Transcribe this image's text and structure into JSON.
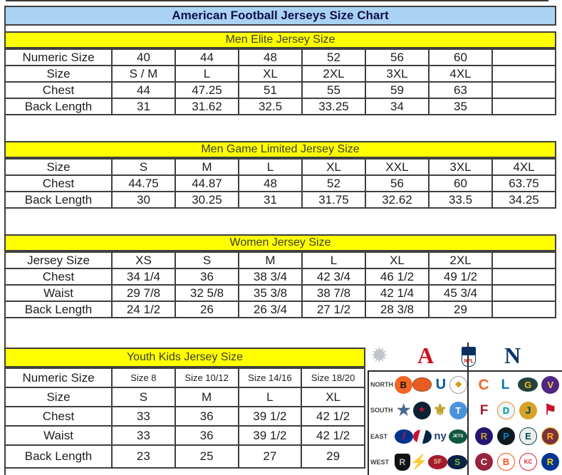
{
  "title": "American Football Jerseys Size Chart",
  "sections": [
    {
      "header": "Men Elite Jersey Size",
      "rows": [
        {
          "label": "Numeric Size",
          "values": [
            "40",
            "44",
            "48",
            "52",
            "56",
            "60",
            ""
          ]
        },
        {
          "label": "Size",
          "values": [
            "S / M",
            "L",
            "XL",
            "2XL",
            "3XL",
            "4XL",
            ""
          ]
        },
        {
          "label": "Chest",
          "values": [
            "44",
            "47.25",
            "51",
            "55",
            "59",
            "63",
            ""
          ]
        },
        {
          "label": "Back Length",
          "values": [
            "31",
            "31.62",
            "32.5",
            "33.25",
            "34",
            "35",
            ""
          ]
        }
      ]
    },
    {
      "header": "Men Game Limited Jersey Size",
      "rows": [
        {
          "label": "Size",
          "values": [
            "S",
            "M",
            "L",
            "XL",
            "XXL",
            "3XL",
            "4XL"
          ]
        },
        {
          "label": "Chest",
          "values": [
            "44.75",
            "44.87",
            "48",
            "52",
            "56",
            "60",
            "63.75"
          ]
        },
        {
          "label": "Back Length",
          "values": [
            "30",
            "30.25",
            "31",
            "31.75",
            "32.62",
            "33.5",
            "34.25"
          ]
        }
      ]
    },
    {
      "header": "Women Jersey Size",
      "rows": [
        {
          "label": "Jersey Size",
          "values": [
            "XS",
            "S",
            "M",
            "L",
            "XL",
            "2XL",
            ""
          ]
        },
        {
          "label": "Chest",
          "values": [
            "34 1/4",
            "36",
            "38 3/4",
            "42 3/4",
            "46 1/2",
            "49 1/2",
            ""
          ]
        },
        {
          "label": "Waist",
          "values": [
            "29 7/8",
            "32 5/8",
            "35 3/8",
            "38 7/8",
            "42 1/4",
            "45 3/4",
            ""
          ]
        },
        {
          "label": "Back Length",
          "values": [
            "24 1/2",
            "26",
            "26 3/4",
            "27 1/2",
            "28 3/8",
            "29",
            ""
          ]
        }
      ]
    },
    {
      "header": "Youth Kids Jersey Size",
      "rows": [
        {
          "label": "Numeric Size",
          "small": true,
          "values": [
            "Size 8",
            "Size 10/12",
            "Size 14/16",
            "Size 18/20"
          ]
        },
        {
          "label": "Size",
          "values": [
            "S",
            "M",
            "L",
            "XL"
          ]
        },
        {
          "label": "Chest",
          "values": [
            "33",
            "36",
            "39 1/2",
            "42 1/2"
          ]
        },
        {
          "label": "Waist",
          "values": [
            "33",
            "36",
            "39 1/2",
            "42 1/2"
          ]
        },
        {
          "label": "Back Length",
          "values": [
            "23",
            "25",
            "27",
            "29"
          ]
        }
      ]
    }
  ],
  "logo_panel": {
    "sunburst_glyph": "✹",
    "afc_mark": "A",
    "shield_text": "NFL",
    "nfc_mark": "N",
    "divisions": [
      {
        "label": "NORTH",
        "afc": [
          {
            "id": "bengals",
            "glyph": "B",
            "shape": "circle",
            "bg": "#f26522",
            "fg": "#161616"
          },
          {
            "id": "browns",
            "glyph": "",
            "shape": "ellipse",
            "bg": "#ea5b24",
            "fg": "#ffffff",
            "bd": "#8a4a17"
          },
          {
            "id": "colts",
            "glyph": "U",
            "shape": "glyph",
            "fg": "#0055a5",
            "fs": 20
          },
          {
            "id": "steelers",
            "glyph": "❖",
            "shape": "circle",
            "bg": "#fdfdfd",
            "fg": "#d4a017",
            "bd": "#9a9da0",
            "fs": 12
          }
        ],
        "nfc": [
          {
            "id": "bears",
            "glyph": "C",
            "shape": "glyph",
            "fg": "#eb6a27",
            "fs": 21
          },
          {
            "id": "lions",
            "glyph": "L",
            "shape": "glyph",
            "fg": "#0076b6",
            "fs": 19
          },
          {
            "id": "packers",
            "glyph": "G",
            "shape": "ellipse",
            "bg": "#24423c",
            "fg": "#ffb612"
          },
          {
            "id": "vikings",
            "glyph": "V",
            "shape": "circle",
            "bg": "#4f2683",
            "fg": "#ffc62f"
          }
        ]
      },
      {
        "label": "SOUTH",
        "afc": [
          {
            "id": "cowboys",
            "glyph": "★",
            "shape": "glyph",
            "fg": "#49698f",
            "fs": 22
          },
          {
            "id": "texans",
            "glyph": "★",
            "shape": "circle",
            "bg": "#0b2231",
            "fg": "#c41230",
            "fs": 10
          },
          {
            "id": "saints",
            "glyph": "⚜",
            "shape": "glyph",
            "fg": "#bfa024",
            "fs": 22
          },
          {
            "id": "titans",
            "glyph": "T",
            "shape": "circle",
            "bg": "#4b92db",
            "fg": "#ffffff"
          }
        ],
        "nfc": [
          {
            "id": "falcons",
            "glyph": "F",
            "shape": "glyph",
            "fg": "#a71930",
            "fs": 19
          },
          {
            "id": "dolphins",
            "glyph": "D",
            "shape": "circle",
            "bg": "#e9f7f8",
            "fg": "#008e97",
            "bd": "#f58220"
          },
          {
            "id": "jaguars",
            "glyph": "J",
            "shape": "circle",
            "bg": "#d7a22a",
            "fg": "#00454f",
            "fs": 14
          },
          {
            "id": "buccaneers",
            "glyph": "⚑",
            "shape": "glyph",
            "fg": "#c8102e",
            "fs": 20
          }
        ]
      },
      {
        "label": "EAST",
        "afc": [
          {
            "id": "bills",
            "glyph": "/",
            "shape": "ellipse",
            "bg": "#00338d",
            "fg": "#d21033",
            "fs": 15
          },
          {
            "id": "patriots",
            "glyph": "",
            "shape": "ellipse",
            "bg": "linear-gradient(105deg,#c8102e 32%,#f5f5f5 32%,#f5f5f5 58%,#002244 58%)",
            "fg": "#ffffff"
          },
          {
            "id": "giants",
            "glyph": "ny",
            "shape": "glyph",
            "fg": "#1f3f7f",
            "fs": 15
          },
          {
            "id": "jets",
            "glyph": "JETS",
            "shape": "ellipse",
            "bg": "#125740",
            "fg": "#ffffff",
            "fs": 6
          }
        ],
        "nfc": [
          {
            "id": "ravens",
            "glyph": "R",
            "shape": "circle",
            "bg": "#241773",
            "fg": "#c7a326"
          },
          {
            "id": "panthers",
            "glyph": "P",
            "shape": "circle",
            "bg": "#101820",
            "fg": "#0085ca"
          },
          {
            "id": "eagles",
            "glyph": "E",
            "shape": "circle",
            "bg": "#ececec",
            "fg": "#004c54",
            "bd": "#004c54"
          },
          {
            "id": "redskins",
            "glyph": "R",
            "shape": "circle",
            "bg": "#773141",
            "fg": "#ffb612",
            "bd": "#ffb612"
          }
        ]
      },
      {
        "label": "WEST",
        "afc": [
          {
            "id": "raiders",
            "glyph": "R",
            "shape": "shield",
            "bg": "#111111",
            "fg": "#b9bdc1",
            "fs": 12
          },
          {
            "id": "chargers",
            "glyph": "⚡",
            "shape": "glyph",
            "fg": "#f2a900",
            "fs": 20
          },
          {
            "id": "49ers",
            "glyph": "SF",
            "shape": "ellipse",
            "bg": "#a6192e",
            "fg": "#e3bf84",
            "fs": 9
          },
          {
            "id": "seahawks",
            "glyph": "S",
            "shape": "ellipse",
            "bg": "#0b2244",
            "fg": "#7ac142",
            "fs": 12
          }
        ],
        "nfc": [
          {
            "id": "cardinals",
            "glyph": "C",
            "shape": "circle",
            "bg": "#97233f",
            "fg": "#ffffff"
          },
          {
            "id": "broncos",
            "glyph": "B",
            "shape": "circle",
            "bg": "#ffffff",
            "fg": "#fb4f14",
            "bd": "#fb4f14"
          },
          {
            "id": "chiefs",
            "glyph": "KC",
            "shape": "circle",
            "bg": "#ffffff",
            "fg": "#e31837",
            "bd": "#e31837",
            "fs": 8
          },
          {
            "id": "rams",
            "glyph": "R",
            "shape": "circle",
            "bg": "#003594",
            "fg": "#ffd100"
          }
        ]
      }
    ]
  },
  "colors": {
    "title_bg": "#a9d2f3",
    "title_text": "#10104a",
    "band_bg": "#ffff00",
    "band_text": "#3d3d32",
    "table_border": "#3f3f3f",
    "afc_red": "#cf1020",
    "nfc_blue": "#013369"
  }
}
